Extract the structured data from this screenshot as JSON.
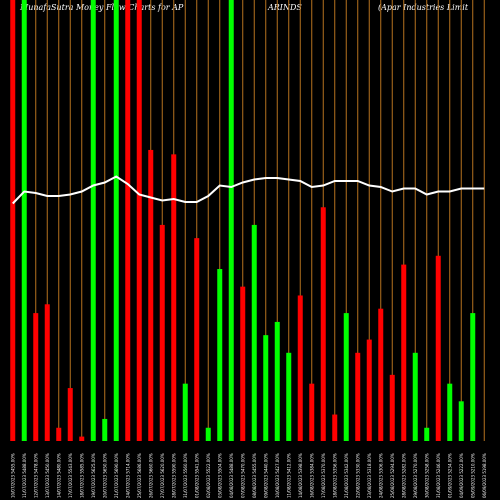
{
  "header": {
    "title_left": "MunafaSutra  Money Flow  Charts for AP",
    "title_mid": "ARINDS",
    "title_right": "(Apar Industries Limit"
  },
  "chart_data": {
    "type": "bar",
    "title": "MunafaSutra  Money Flow  Charts for AP ARINDS (Apar Industries Limit",
    "xlabel": "",
    "ylabel": "",
    "ylim": [
      0,
      100
    ],
    "grid": true,
    "colors": {
      "up": "#00ff00",
      "down": "#ff0000",
      "grid": "#b5731f",
      "line": "#ffffff",
      "background": "#000000"
    },
    "categories": [
      "11 Jul",
      "12 Jul",
      "13 Jul",
      "14 Jul",
      "17 Jul",
      "18 Jul",
      "19 Jul",
      "20 Jul",
      "21 Jul",
      "24 Jul",
      "25 Jul",
      "26 Jul",
      "27 Jul",
      "28 Jul",
      "31 Jul",
      "01 Aug",
      "02 Aug",
      "03 Aug",
      "04 Aug",
      "07 Aug",
      "08 Aug",
      "09 Aug",
      "10 Aug",
      "11 Aug",
      "14 Aug",
      "16 Aug",
      "17 Aug",
      "18 Aug",
      "21 Aug",
      "22 Aug",
      "23 Aug",
      "24 Aug",
      "25 Aug",
      "28 Aug",
      "29 Aug",
      "30 Aug",
      "31 Aug",
      "01 Sep",
      "04 Sep",
      "05 Sep",
      "06 Sep",
      "07 Sep"
    ],
    "x_tick_labels": [
      "10/07/2023 5455.00%",
      "11/07/2023 5488.00%",
      "12/07/2023 5478.00%",
      "13/07/2023 5450.00%",
      "14/07/2023 5480.00%",
      "17/07/2023 5543.00%",
      "18/07/2023 5585.00%",
      "19/07/2023 5625.00%",
      "20/07/2023 5650.00%",
      "21/07/2023 5690.00%",
      "24/07/2023 5714.00%",
      "25/07/2023 5686.00%",
      "26/07/2023 5660.00%",
      "27/07/2023 5620.00%",
      "28/07/2023 5590.00%",
      "31/07/2023 5560.00%",
      "01/08/2023 5541.00%",
      "02/08/2023 5522.00%",
      "03/08/2023 5504.00%",
      "04/08/2023 5488.00%",
      "07/08/2023 5470.00%",
      "08/08/2023 5455.00%",
      "09/08/2023 5440.00%",
      "10/08/2023 5427.00%",
      "11/08/2023 5412.00%",
      "14/08/2023 5398.00%",
      "16/08/2023 5384.00%",
      "17/08/2023 5370.00%",
      "18/08/2023 5356.00%",
      "21/08/2023 5342.00%",
      "22/08/2023 5330.00%",
      "23/08/2023 5318.00%",
      "24/08/2023 5306.00%",
      "25/08/2023 5294.00%",
      "28/08/2023 5282.00%",
      "29/08/2023 5270.00%",
      "30/08/2023 5258.00%",
      "31/08/2023 5246.00%",
      "01/09/2023 5234.00%",
      "04/09/2023 5222.00%",
      "05/09/2023 5210.00%",
      "06/09/2023 5198.00%"
    ],
    "series": [
      {
        "kind": "money_flow_bars",
        "values": [
          100,
          100,
          29,
          31,
          3,
          12,
          1,
          100,
          5,
          100,
          100,
          100,
          66,
          49,
          65,
          13,
          46,
          3,
          39,
          100,
          35,
          49,
          24,
          27,
          20,
          33,
          13,
          53,
          6,
          29,
          20,
          23,
          30,
          15,
          40,
          20,
          3,
          42,
          13,
          9,
          29,
          0
        ],
        "directions": [
          "down",
          "up",
          "down",
          "down",
          "down",
          "down",
          "down",
          "up",
          "up",
          "up",
          "down",
          "down",
          "down",
          "down",
          "down",
          "up",
          "down",
          "up",
          "up",
          "up",
          "down",
          "up",
          "up",
          "up",
          "up",
          "down",
          "down",
          "down",
          "down",
          "up",
          "down",
          "down",
          "down",
          "down",
          "down",
          "up",
          "up",
          "down",
          "up",
          "up",
          "up",
          "up"
        ]
      },
      {
        "kind": "price_line",
        "values": [
          51,
          59,
          58,
          56,
          56,
          57,
          59,
          63,
          65,
          69,
          64,
          57,
          55,
          53,
          54,
          52,
          52,
          56,
          63,
          62,
          65,
          67,
          68,
          68,
          67,
          66,
          62,
          63,
          66,
          66,
          66,
          63,
          62,
          59,
          61,
          61,
          57,
          59,
          59,
          61,
          61,
          61
        ]
      }
    ]
  }
}
